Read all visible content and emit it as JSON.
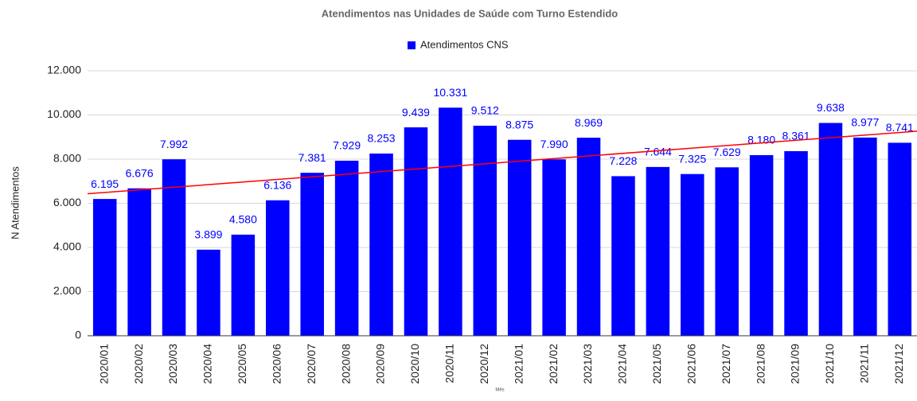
{
  "chart_data": {
    "type": "bar",
    "title": "Atendimentos nas Unidades de Saúde com Turno Estendido",
    "x_label": "Mês",
    "y_label": "N Atendimentos",
    "categories": [
      "2020/01",
      "2020/02",
      "2020/03",
      "2020/04",
      "2020/05",
      "2020/06",
      "2020/07",
      "2020/08",
      "2020/09",
      "2020/10",
      "2020/11",
      "2020/12",
      "2021/01",
      "2021/02",
      "2021/03",
      "2021/04",
      "2021/05",
      "2021/06",
      "2021/07",
      "2021/08",
      "2021/09",
      "2021/10",
      "2021/11",
      "2021/12"
    ],
    "series": [
      {
        "name": "Atendimentos CNS",
        "color": "#0000ff",
        "values": [
          6195,
          6676,
          7992,
          3899,
          4580,
          6136,
          7381,
          7929,
          8253,
          9439,
          10331,
          9512,
          8875,
          7990,
          8969,
          7228,
          7644,
          7325,
          7629,
          8180,
          8361,
          9638,
          8977,
          8741
        ],
        "value_labels": [
          "6.195",
          "6.676",
          "7.992",
          "3.899",
          "4.580",
          "6.136",
          "7.381",
          "7.929",
          "8.253",
          "9.439",
          "10.331",
          "9.512",
          "8.875",
          "7.990",
          "8.969",
          "7.228",
          "7.644",
          "7.325",
          "7.629",
          "8.180",
          "8.361",
          "9.638",
          "8.977",
          "8.741"
        ]
      }
    ],
    "trendline": {
      "color": "#ff0000",
      "values": [
        6490,
        9207
      ]
    },
    "ylim": [
      0,
      12000
    ],
    "yticks": [
      0,
      {
        "value": 2000,
        "label": "2.000"
      },
      {
        "value": 4000,
        "label": "4.000"
      },
      {
        "value": 6000,
        "label": "6.000"
      },
      {
        "value": 8000,
        "label": "8.000"
      },
      {
        "value": 10000,
        "label": "10.000"
      },
      {
        "value": 12000,
        "label": "12.000"
      }
    ],
    "grid": true,
    "legend": "top"
  }
}
